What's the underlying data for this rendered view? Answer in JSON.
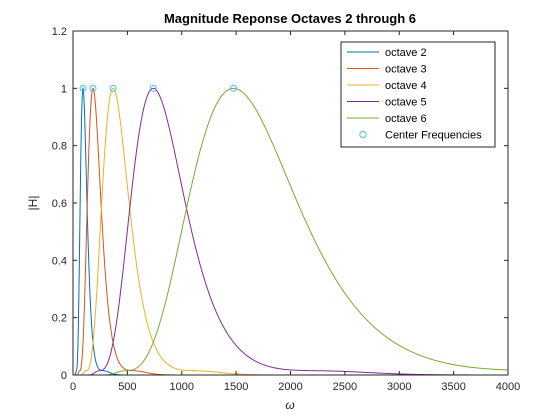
{
  "chart_data": {
    "type": "line",
    "title": "Magnitude Reponse Octaves 2 through 6",
    "xlabel": "ω",
    "ylabel": "|H|",
    "xlim": [
      0,
      4000
    ],
    "ylim": [
      0,
      1.2
    ],
    "xticks": [
      0,
      500,
      1000,
      1500,
      2000,
      2500,
      3000,
      3500,
      4000
    ],
    "yticks": [
      0,
      0.2,
      0.4,
      0.6,
      0.8,
      1,
      1.2
    ],
    "xtick_labels": [
      "0",
      "500",
      "1000",
      "1500",
      "2000",
      "2500",
      "3000",
      "3500",
      "4000"
    ],
    "ytick_labels": [
      "0",
      "0.2",
      "0.4",
      "0.6",
      "0.8",
      "1",
      "1.2"
    ],
    "legend_position": "top-right",
    "grid": false,
    "series": [
      {
        "name": "octave 2",
        "color": "#0072BD",
        "center": 92,
        "peak": 1.0
      },
      {
        "name": "octave 3",
        "color": "#D95319",
        "center": 184,
        "peak": 1.0
      },
      {
        "name": "octave 4",
        "color": "#EDB120",
        "center": 369,
        "peak": 1.0
      },
      {
        "name": "octave 5",
        "color": "#7E2F8E",
        "center": 738,
        "peak": 1.0
      },
      {
        "name": "octave 6",
        "color": "#77AC30",
        "center": 1476,
        "peak": 1.0
      }
    ],
    "center_markers": {
      "name": "Center Frequencies",
      "color": "#4DBEEE",
      "x": [
        92,
        184,
        369,
        738,
        1476
      ],
      "y": [
        1,
        1,
        1,
        1,
        1
      ]
    }
  }
}
